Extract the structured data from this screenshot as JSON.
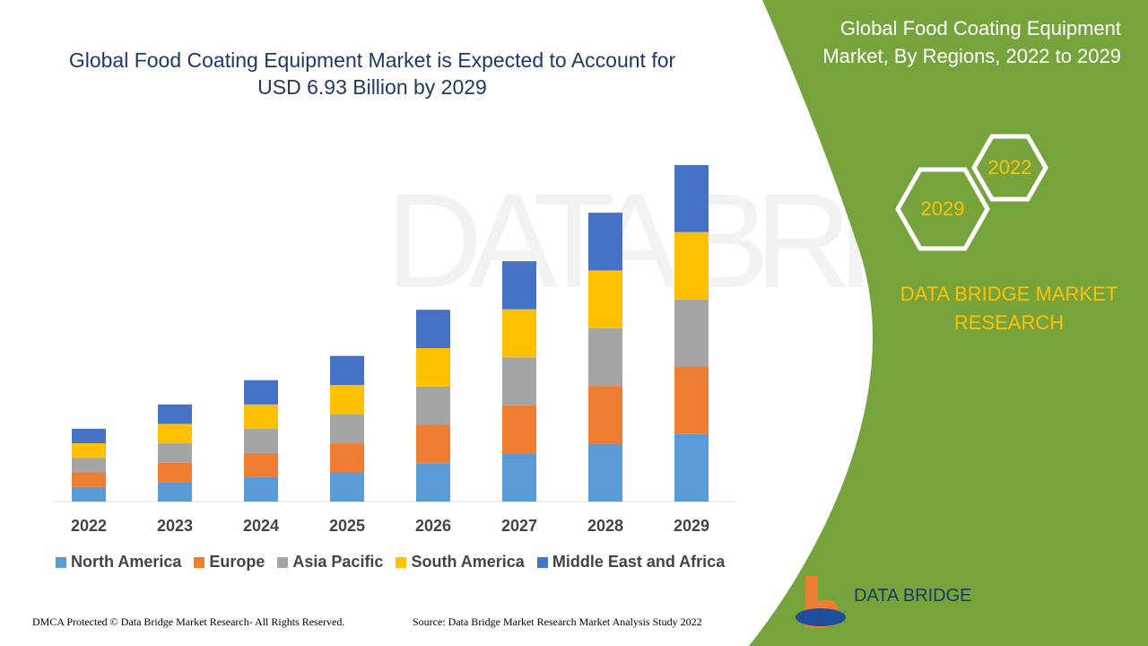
{
  "chart_data": {
    "type": "stacked-bar",
    "title": "Global Food Coating Equipment Market is Expected to Account for USD 6.93 Billion by 2029",
    "categories": [
      "2022",
      "2023",
      "2024",
      "2025",
      "2026",
      "2027",
      "2028",
      "2029"
    ],
    "series": [
      {
        "name": "North America",
        "color": "#5b9bd5",
        "values": [
          0.3,
          0.4,
          0.5,
          0.6,
          0.79,
          0.99,
          1.19,
          1.39
        ]
      },
      {
        "name": "Europe",
        "color": "#ed7d31",
        "values": [
          0.3,
          0.4,
          0.5,
          0.6,
          0.79,
          0.99,
          1.19,
          1.39
        ]
      },
      {
        "name": "Asia Pacific",
        "color": "#a5a5a5",
        "values": [
          0.3,
          0.4,
          0.5,
          0.6,
          0.79,
          0.99,
          1.19,
          1.38
        ]
      },
      {
        "name": "South America",
        "color": "#ffc000",
        "values": [
          0.3,
          0.4,
          0.5,
          0.6,
          0.79,
          0.99,
          1.19,
          1.39
        ]
      },
      {
        "name": "Middle East and Africa",
        "color": "#4472c4",
        "values": [
          0.3,
          0.4,
          0.5,
          0.6,
          0.79,
          0.99,
          1.19,
          1.38
        ]
      }
    ]
  },
  "panel": {
    "title": "Global Food Coating Equipment Market, By Regions, 2022 to 2029",
    "hex_start": "2022",
    "hex_end": "2029",
    "brand": "DATA BRIDGE MARKET RESEARCH",
    "logo": "DATA BRIDGE"
  },
  "footer": {
    "left": "DMCA Protected © Data Bridge Market Research- All Rights Reserved.",
    "right": "Source: Data Bridge Market Research Market Analysis Study 2022"
  }
}
